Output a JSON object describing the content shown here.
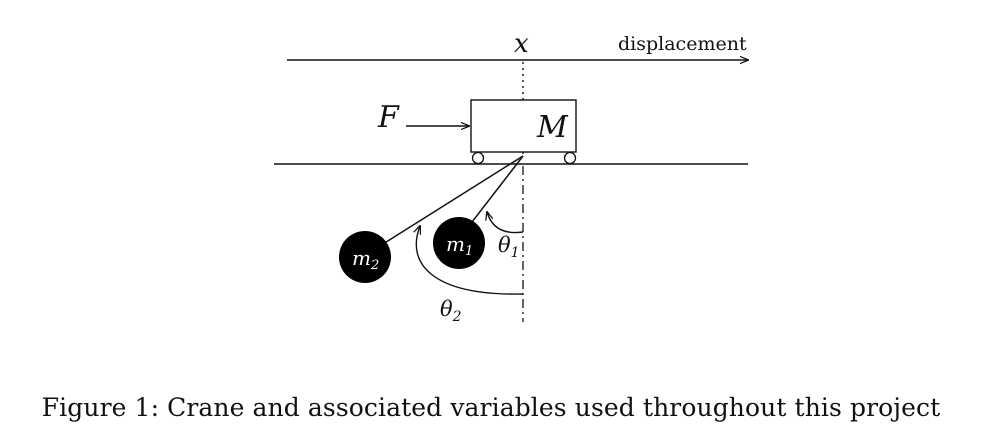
{
  "diagram": {
    "axis_variable": "x",
    "axis_label": "displacement",
    "force_label": "F",
    "cart_label": "M",
    "mass1_label": "m",
    "mass1_sub": "1",
    "mass2_label": "m",
    "mass2_sub": "2",
    "angle1_label": "θ",
    "angle1_sub": "1",
    "angle2_label": "θ",
    "angle2_sub": "2"
  },
  "caption": "Figure 1: Crane and associated variables used throughout this project"
}
